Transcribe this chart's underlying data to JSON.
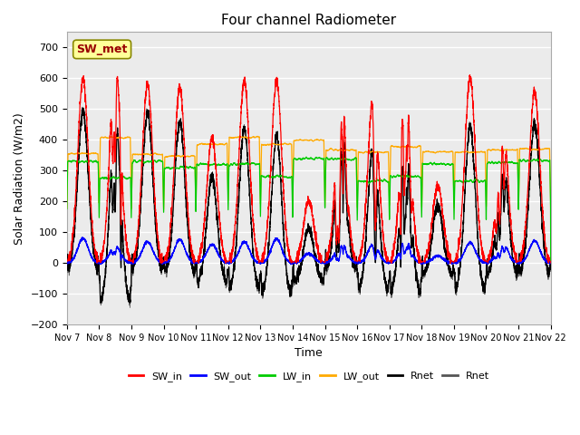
{
  "title": "Four channel Radiometer",
  "xlabel": "Time",
  "ylabel": "Solar Radiation (W/m2)",
  "ylim": [
    -200,
    750
  ],
  "yticks": [
    -200,
    -100,
    0,
    100,
    200,
    300,
    400,
    500,
    600,
    700
  ],
  "num_days": 15,
  "points_per_day": 288,
  "legend_labels": [
    "SW_in",
    "SW_out",
    "LW_in",
    "LW_out",
    "Rnet",
    "Rnet"
  ],
  "legend_colors": [
    "#ff0000",
    "#0000ff",
    "#00cc00",
    "#ffaa00",
    "#000000",
    "#555555"
  ],
  "annotation_text": "SW_met",
  "annotation_color": "#990000",
  "annotation_bg": "#ffff99",
  "background_color": "#ebebeb",
  "grid_color": "#ffffff"
}
